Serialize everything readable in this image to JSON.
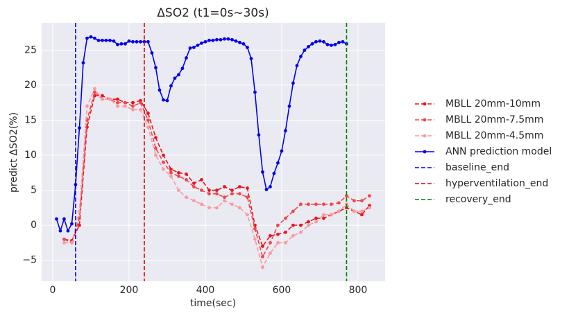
{
  "chart_data": {
    "type": "line",
    "title": "ΔSO2 (t1=0s~30s)",
    "x_label": "time(sec)",
    "y_label": "predict ΔSO2(%)",
    "xlim": [
      -29,
      871
    ],
    "xticks": [
      0,
      200,
      400,
      600,
      800
    ],
    "ylim": [
      -8,
      28.9
    ],
    "yticks": [
      {
        "value": -5,
        "label": "−5"
      },
      0,
      5,
      10,
      15,
      20,
      25
    ],
    "grid": true,
    "legend": "outside right",
    "series": [
      {
        "name": "MBLL 20mm-10mm",
        "color": "#e8141c",
        "dashed": true,
        "x": [
          30,
          50,
          70,
          90,
          110,
          130,
          150,
          170,
          190,
          210,
          230,
          250,
          270,
          290,
          310,
          330,
          350,
          370,
          390,
          410,
          430,
          450,
          470,
          490,
          510,
          530,
          550,
          570,
          590,
          610,
          630,
          650,
          670,
          690,
          710,
          730,
          750,
          770,
          790,
          810,
          830
        ],
        "values": [
          -2,
          -2.2,
          0,
          14,
          18.5,
          18.5,
          18,
          18,
          17.5,
          17.5,
          17.8,
          16,
          12.5,
          10,
          8,
          7.5,
          7.3,
          6,
          6.5,
          5,
          5,
          5.5,
          5,
          5.5,
          5.3,
          0,
          -3,
          -1.5,
          -1.3,
          -1,
          0,
          0,
          0.5,
          1,
          1,
          1.5,
          2,
          2.5,
          2,
          1.5,
          2.8
        ]
      },
      {
        "name": "MBLL 20mm-7.5mm",
        "color": "#f0464a",
        "dashed": true,
        "x": [
          30,
          50,
          70,
          90,
          110,
          130,
          150,
          170,
          190,
          210,
          230,
          250,
          270,
          290,
          310,
          330,
          350,
          370,
          390,
          410,
          430,
          450,
          470,
          490,
          510,
          530,
          550,
          570,
          590,
          610,
          630,
          650,
          670,
          690,
          710,
          730,
          750,
          770,
          790,
          810,
          830
        ],
        "values": [
          -2,
          -2.5,
          1,
          15,
          19,
          18,
          18,
          17.5,
          17.5,
          17,
          17.5,
          15,
          11,
          9,
          7.5,
          7,
          6.5,
          5.5,
          5,
          4.5,
          4.5,
          4,
          4.5,
          4.5,
          4,
          -0.5,
          -4.5,
          -2.5,
          0,
          1,
          2,
          3,
          3,
          3,
          3,
          3,
          3.2,
          4.2,
          3.5,
          3.5,
          4.2
        ]
      },
      {
        "name": "MBLL 20mm-4.5mm",
        "color": "#f99a9c",
        "dashed": true,
        "x": [
          30,
          50,
          70,
          90,
          110,
          130,
          150,
          170,
          190,
          210,
          230,
          250,
          270,
          290,
          310,
          330,
          350,
          370,
          390,
          410,
          430,
          450,
          470,
          490,
          510,
          530,
          550,
          570,
          590,
          610,
          630,
          650,
          670,
          690,
          710,
          730,
          750,
          770,
          790,
          810,
          830
        ],
        "values": [
          -2.5,
          -2.5,
          2,
          17,
          19.5,
          18,
          18,
          17,
          17,
          16.5,
          16.5,
          14,
          10,
          8,
          7,
          5,
          4,
          3.5,
          3,
          2.5,
          2.5,
          3.5,
          3,
          2.5,
          1.5,
          -2,
          -6,
          -4,
          -2.5,
          -2.5,
          -1.5,
          -1,
          0,
          0.5,
          1.5,
          1.5,
          2,
          3,
          2,
          2,
          2.5
        ]
      },
      {
        "name": "ANN prediction model",
        "color": "#0000ee",
        "dashed": false,
        "x": [
          10,
          20,
          30,
          40,
          50,
          60,
          70,
          80,
          90,
          100,
          110,
          120,
          130,
          140,
          150,
          160,
          170,
          180,
          190,
          200,
          210,
          220,
          230,
          240,
          250,
          260,
          270,
          280,
          290,
          300,
          310,
          320,
          330,
          340,
          350,
          360,
          370,
          380,
          390,
          400,
          410,
          420,
          430,
          440,
          450,
          460,
          470,
          480,
          490,
          500,
          510,
          520,
          530,
          540,
          550,
          560,
          570,
          580,
          590,
          600,
          610,
          620,
          630,
          640,
          650,
          660,
          670,
          680,
          690,
          700,
          710,
          720,
          730,
          740,
          750,
          760,
          770
        ],
        "values": [
          0.9,
          -0.8,
          0.9,
          -0.8,
          0.2,
          5.8,
          13.9,
          23.2,
          26.7,
          26.9,
          26.7,
          26.4,
          26.4,
          26.4,
          26.4,
          26.3,
          25.8,
          25.9,
          25.9,
          26.3,
          26.2,
          26.2,
          26.2,
          26.2,
          26.2,
          24.6,
          22.5,
          19.3,
          17.9,
          17.8,
          19.9,
          21,
          21.5,
          22.4,
          23.9,
          25.3,
          25.4,
          25.7,
          26,
          26.2,
          26.4,
          26.4,
          26.5,
          26.5,
          26.6,
          26.6,
          26.5,
          26.3,
          26.1,
          25.9,
          25.4,
          23.8,
          19,
          12.9,
          7.6,
          5.1,
          5.5,
          7.4,
          8.9,
          10.6,
          13.5,
          17,
          20.3,
          22.8,
          24.1,
          25,
          25.5,
          25.9,
          26.2,
          26.3,
          26.2,
          25.8,
          25.7,
          25.8,
          26.1,
          26.2,
          25.9
        ]
      }
    ],
    "vlines": [
      {
        "name": "baseline_end",
        "color": "#0000ee",
        "x": 60
      },
      {
        "name": "hyperventilation_end",
        "color": "#e00000",
        "x": 240
      },
      {
        "name": "recovery_end",
        "color": "#008000",
        "x": 770
      }
    ]
  }
}
